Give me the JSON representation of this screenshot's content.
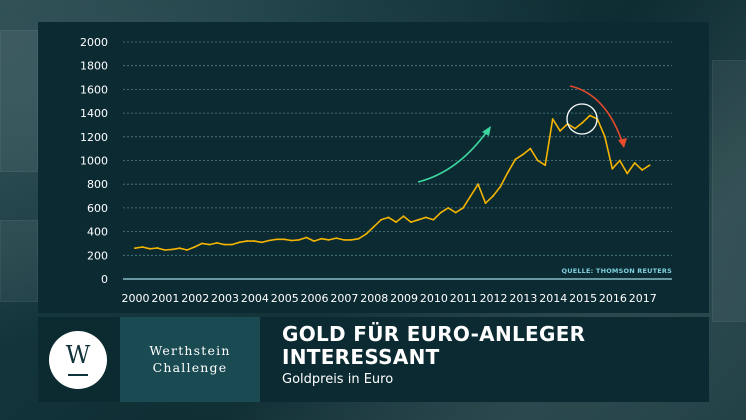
{
  "chart_data": {
    "type": "line",
    "title": "GOLD FÜR EURO-ANLEGER INTERESSANT",
    "subtitle": "Goldpreis in Euro",
    "source": "QUELLE: THOMSON REUTERS",
    "x_ticks": [
      "2000",
      "2001",
      "2002",
      "2003",
      "2004",
      "2005",
      "2006",
      "2007",
      "2008",
      "2009",
      "2010",
      "2011",
      "2012",
      "2013",
      "2014",
      "2015",
      "2016",
      "2017"
    ],
    "y_ticks": [
      "0",
      "200",
      "400",
      "600",
      "800",
      "1000",
      "1200",
      "1400",
      "1600",
      "1800",
      "2000"
    ],
    "ylim": [
      0,
      2000
    ],
    "xlim": [
      1999.6,
      2018.0
    ],
    "grid": true,
    "series": [
      {
        "color": "#f5b400",
        "x": [
          2000.0,
          2000.25,
          2000.5,
          2000.75,
          2001.0,
          2001.25,
          2001.5,
          2001.75,
          2002.0,
          2002.25,
          2002.5,
          2002.75,
          2003.0,
          2003.25,
          2003.5,
          2003.75,
          2004.0,
          2004.25,
          2004.5,
          2004.75,
          2005.0,
          2005.25,
          2005.5,
          2005.75,
          2006.0,
          2006.25,
          2006.5,
          2006.75,
          2007.0,
          2007.25,
          2007.5,
          2007.75,
          2008.0,
          2008.25,
          2008.5,
          2008.75,
          2009.0,
          2009.25,
          2009.5,
          2009.75,
          2010.0,
          2010.25,
          2010.5,
          2010.75,
          2011.0,
          2011.25,
          2011.5,
          2011.75,
          2012.0,
          2012.25,
          2012.5,
          2012.75,
          2013.0,
          2013.25,
          2013.5,
          2013.75,
          2014.0,
          2014.25,
          2014.5,
          2014.75,
          2015.0,
          2015.25,
          2015.5,
          2015.75,
          2016.0,
          2016.25,
          2016.5,
          2016.75,
          2017.0,
          2017.25
        ],
        "y": [
          260,
          270,
          255,
          262,
          245,
          250,
          260,
          245,
          270,
          300,
          290,
          305,
          290,
          290,
          310,
          320,
          320,
          310,
          325,
          335,
          335,
          325,
          330,
          350,
          320,
          340,
          330,
          345,
          330,
          330,
          340,
          380,
          440,
          500,
          520,
          480,
          530,
          480,
          500,
          520,
          500,
          560,
          600,
          560,
          600,
          700,
          800,
          640,
          700,
          780,
          900,
          1010,
          1050,
          1100,
          1000,
          960,
          1350,
          1250,
          1310,
          1270,
          1320,
          1380,
          1350,
          1200,
          930,
          1000,
          890,
          980,
          920,
          960
        ]
      }
    ]
  },
  "brand": {
    "logo_letter": "W",
    "line1": "Werthstein",
    "line2": "Challenge"
  },
  "headline": {
    "line1": "GOLD FÜR EURO-ANLEGER",
    "line2": "INTERESSANT",
    "subtitle": "Goldpreis in Euro"
  },
  "annotations": {
    "up_arrow_color": "#3dd6a0",
    "down_arrow_color": "#e54b2c",
    "circle_color": "#ffffff"
  }
}
